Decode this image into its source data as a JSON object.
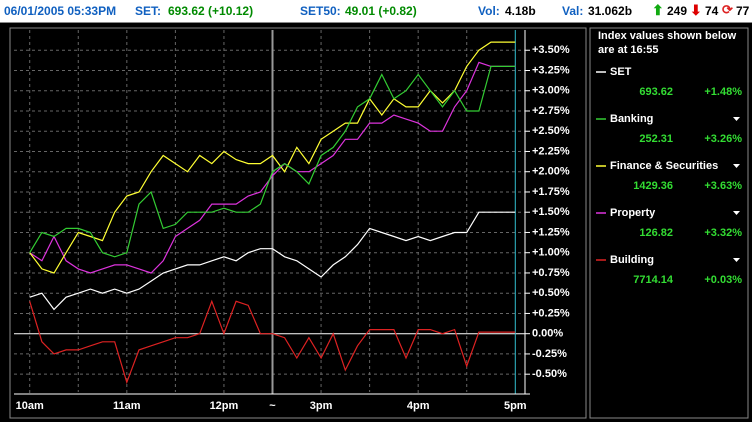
{
  "header": {
    "datetime": "06/01/2005 05:33PM",
    "set_label": "SET:",
    "set_value": "693.62 (+10.12)",
    "set50_label": "SET50:",
    "set50_value": "49.01 (+0.82)",
    "vol_label": "Vol:",
    "vol_value": "4.18b",
    "val_label": "Val:",
    "val_value": "31.062b",
    "up": "249",
    "down": "74",
    "unchanged": "77"
  },
  "chart_data": {
    "type": "line",
    "x": [
      10,
      10.125,
      10.25,
      10.375,
      10.5,
      10.625,
      10.75,
      10.875,
      11,
      11.125,
      11.25,
      11.375,
      11.5,
      11.625,
      11.75,
      11.875,
      12,
      12.125,
      12.25,
      12.375,
      12.5,
      12.625,
      12.75,
      12.875,
      13,
      13.125,
      13.25,
      13.375,
      13.5,
      13.625,
      13.75,
      13.875,
      14,
      14.125,
      14.25,
      14.375,
      14.5,
      14.625,
      14.75,
      14.875,
      15
    ],
    "series": [
      {
        "name": "SET",
        "color": "#ffffff",
        "values": [
          0.45,
          0.5,
          0.3,
          0.45,
          0.5,
          0.55,
          0.5,
          0.55,
          0.5,
          0.55,
          0.65,
          0.75,
          0.8,
          0.85,
          0.85,
          0.9,
          0.95,
          0.9,
          1.0,
          1.05,
          1.05,
          0.95,
          0.9,
          0.8,
          0.7,
          0.85,
          0.95,
          1.1,
          1.3,
          1.25,
          1.2,
          1.15,
          1.2,
          1.15,
          1.2,
          1.25,
          1.25,
          1.5,
          1.5,
          1.5,
          1.5
        ]
      },
      {
        "name": "Banking",
        "color": "#33cc33",
        "values": [
          1.0,
          1.25,
          1.2,
          1.3,
          1.3,
          1.25,
          1.0,
          0.95,
          1.0,
          1.6,
          1.75,
          1.3,
          1.35,
          1.5,
          1.5,
          1.5,
          1.55,
          1.5,
          1.5,
          1.6,
          2.0,
          2.1,
          2.0,
          1.85,
          2.2,
          2.3,
          2.5,
          2.8,
          2.9,
          3.2,
          2.9,
          3.0,
          3.2,
          3.0,
          2.8,
          3.0,
          2.75,
          2.75,
          3.3,
          3.3,
          3.3
        ]
      },
      {
        "name": "Finance & Securities",
        "color": "#ffff33",
        "values": [
          1.0,
          0.8,
          0.75,
          1.0,
          1.25,
          1.2,
          1.15,
          1.5,
          1.7,
          1.75,
          2.0,
          2.2,
          2.1,
          2.0,
          2.2,
          2.1,
          2.25,
          2.15,
          2.1,
          2.1,
          2.2,
          2.0,
          2.3,
          2.1,
          2.4,
          2.5,
          2.6,
          2.6,
          2.9,
          2.7,
          2.9,
          2.8,
          2.8,
          3.0,
          2.85,
          3.0,
          3.3,
          3.5,
          3.6,
          3.6,
          3.6
        ]
      },
      {
        "name": "Property",
        "color": "#dd33dd",
        "values": [
          1.0,
          0.9,
          1.2,
          0.9,
          0.8,
          0.75,
          0.8,
          0.85,
          0.85,
          0.8,
          0.75,
          0.9,
          1.2,
          1.3,
          1.4,
          1.6,
          1.6,
          1.6,
          1.7,
          1.75,
          1.95,
          2.1,
          2.0,
          2.0,
          2.1,
          2.2,
          2.4,
          2.4,
          2.6,
          2.6,
          2.7,
          2.65,
          2.6,
          2.5,
          2.5,
          2.8,
          3.0,
          3.35,
          3.3,
          3.3,
          3.3
        ]
      },
      {
        "name": "Building",
        "color": "#dd2222",
        "values": [
          0.4,
          -0.1,
          -0.25,
          -0.2,
          -0.2,
          -0.15,
          -0.1,
          -0.1,
          -0.6,
          -0.2,
          -0.15,
          -0.1,
          -0.05,
          -0.05,
          0.0,
          0.4,
          0.0,
          0.4,
          0.35,
          0.0,
          0.0,
          -0.05,
          -0.3,
          -0.05,
          -0.3,
          0.0,
          -0.45,
          -0.15,
          0.05,
          0.05,
          0.05,
          -0.3,
          0.05,
          0.05,
          0.0,
          0.05,
          -0.4,
          0.02,
          0.02,
          0.02,
          0.02
        ]
      }
    ],
    "xlim": [
      9.9,
      15.1
    ],
    "xticks": [
      {
        "value": 10,
        "label": "10am"
      },
      {
        "value": 11,
        "label": "11am"
      },
      {
        "value": 12,
        "label": "12pm"
      },
      {
        "value": 12.5,
        "label": "~"
      },
      {
        "value": 13,
        "label": "3pm"
      },
      {
        "value": 14,
        "label": "4pm"
      },
      {
        "value": 15,
        "label": "5pm"
      }
    ],
    "ylim": [
      -0.72,
      3.75
    ],
    "yticks": [
      {
        "value": -0.5,
        "label": "-0.50%"
      },
      {
        "value": -0.25,
        "label": "-0.25%"
      },
      {
        "value": 0,
        "label": "0.00%"
      },
      {
        "value": 0.25,
        "label": "+0.25%"
      },
      {
        "value": 0.5,
        "label": "+0.50%"
      },
      {
        "value": 0.75,
        "label": "+0.75%"
      },
      {
        "value": 1,
        "label": "+1.00%"
      },
      {
        "value": 1.25,
        "label": "+1.25%"
      },
      {
        "value": 1.5,
        "label": "+1.50%"
      },
      {
        "value": 1.75,
        "label": "+1.75%"
      },
      {
        "value": 2,
        "label": "+2.00%"
      },
      {
        "value": 2.25,
        "label": "+2.25%"
      },
      {
        "value": 2.5,
        "label": "+2.50%"
      },
      {
        "value": 2.75,
        "label": "+2.75%"
      },
      {
        "value": 3,
        "label": "+3.00%"
      },
      {
        "value": 3.25,
        "label": "+3.25%"
      },
      {
        "value": 3.5,
        "label": "+3.50%"
      }
    ],
    "grid": true
  },
  "panel": {
    "note": "Index values shown below are at 16:55",
    "indices": [
      {
        "value": "693.62",
        "change": "+1.48%"
      },
      {
        "value": "252.31",
        "change": "+3.26%"
      },
      {
        "value": "1429.36",
        "change": "+3.63%"
      },
      {
        "value": "126.82",
        "change": "+3.32%"
      },
      {
        "value": "7714.14",
        "change": "+0.03%"
      }
    ]
  }
}
